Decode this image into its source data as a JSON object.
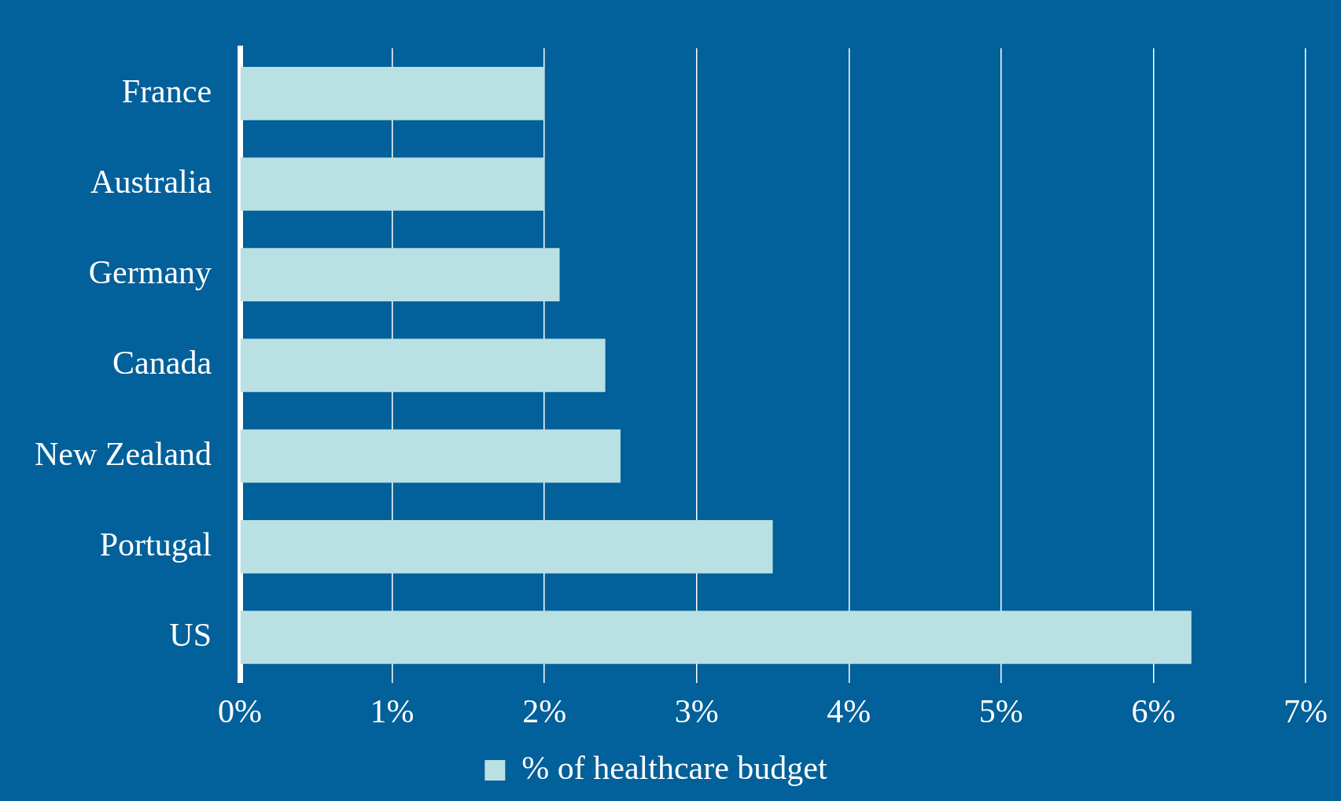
{
  "chart_data": {
    "type": "bar",
    "orientation": "horizontal",
    "categories": [
      "France",
      "Australia",
      "Germany",
      "Canada",
      "New Zealand",
      "Portugal",
      "US"
    ],
    "series": [
      {
        "name": "% of healthcare budget",
        "color": "#b9e0e3",
        "values": [
          2.0,
          2.0,
          2.1,
          2.4,
          2.5,
          3.5,
          6.25
        ]
      }
    ],
    "xlim": [
      0,
      7
    ],
    "xticks": [
      {
        "value": 0,
        "label": "0%"
      },
      {
        "value": 1,
        "label": "1%"
      },
      {
        "value": 2,
        "label": "2%"
      },
      {
        "value": 3,
        "label": "3%"
      },
      {
        "value": 4,
        "label": "4%"
      },
      {
        "value": 5,
        "label": "5%"
      },
      {
        "value": 6,
        "label": "6%"
      },
      {
        "value": 7,
        "label": "7%"
      }
    ],
    "grid": "x",
    "legend": "bottom"
  }
}
